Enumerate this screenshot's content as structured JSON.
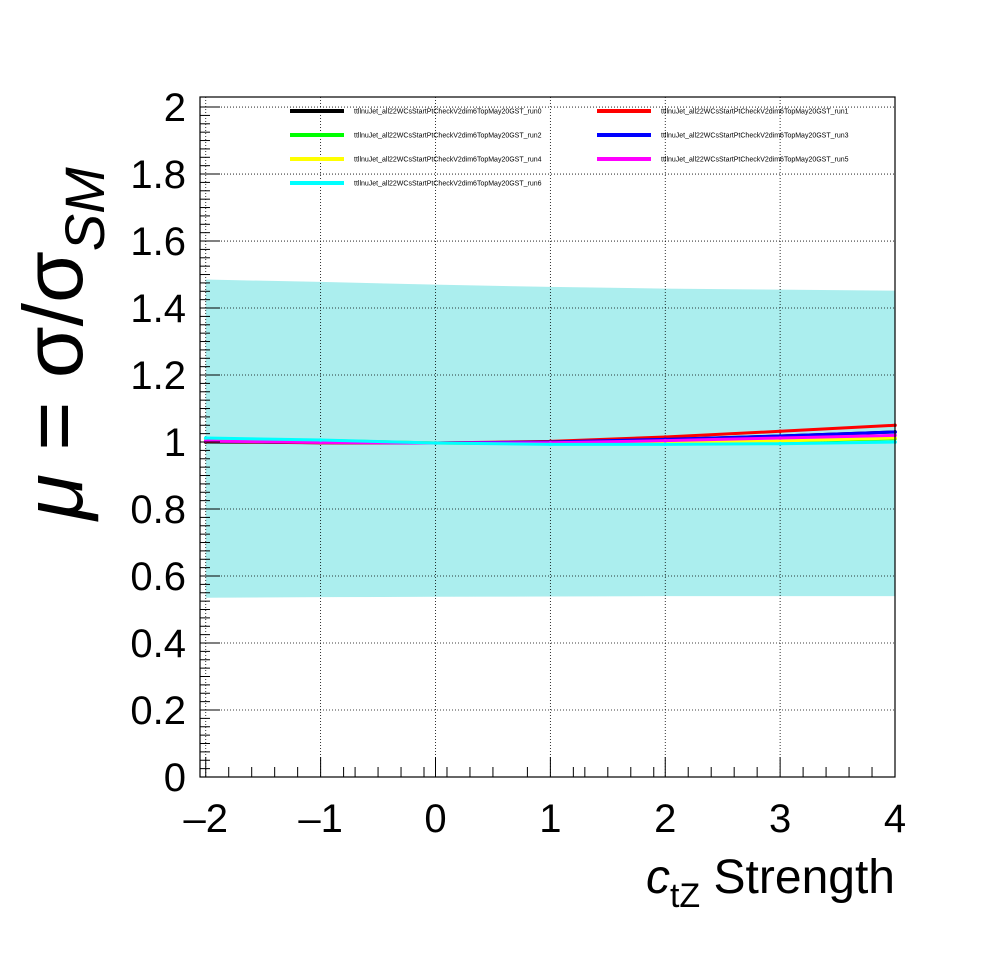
{
  "chart_data": {
    "type": "line",
    "title": "",
    "xlabel": {
      "main": "c",
      "sub": "tZ",
      "suffix": " Strength"
    },
    "ylabel": {
      "mu": "μ",
      "eq": " = σ/σ",
      "sub": "SM"
    },
    "xlim": [
      -2.05,
      4
    ],
    "ylim": [
      0,
      2.03
    ],
    "grid": true,
    "legend_position": "top",
    "x_ticks": [
      -2,
      -1,
      0,
      1,
      2,
      3,
      4
    ],
    "x_tick_labels": [
      "–2",
      "–1",
      "0",
      "1",
      "2",
      "3",
      "4"
    ],
    "y_ticks": [
      0,
      0.2,
      0.4,
      0.6,
      0.8,
      1,
      1.2,
      1.4,
      1.6,
      1.8,
      2
    ],
    "y_tick_labels": [
      "0",
      "0.2",
      "0.4",
      "0.6",
      "0.8",
      "1",
      "1.2",
      "1.4",
      "1.6",
      "1.8",
      "2"
    ],
    "uncertainty_band": {
      "color": "#00cccc",
      "x": [
        -2,
        -1,
        0,
        1,
        2,
        3,
        4
      ],
      "upper": [
        1.485,
        1.478,
        1.47,
        1.463,
        1.458,
        1.455,
        1.452
      ],
      "lower": [
        0.535,
        0.537,
        0.538,
        0.539,
        0.54,
        0.54,
        0.54
      ]
    },
    "series": [
      {
        "name": "ttllnuJet_all22WCsStartPtCheckV2dim6TopMay20GST_run0",
        "color": "#000000",
        "x": [
          -2,
          -1,
          0,
          1,
          2,
          3,
          4
        ],
        "values": [
          1.0,
          0.998,
          0.997,
          1.0,
          1.007,
          1.018,
          1.03
        ]
      },
      {
        "name": "ttllnuJet_all22WCsStartPtCheckV2dim6TopMay20GST_run1",
        "color": "#ff0000",
        "x": [
          -2,
          -1,
          0,
          1,
          2,
          3,
          4
        ],
        "values": [
          1.002,
          0.998,
          0.997,
          1.002,
          1.015,
          1.032,
          1.05
        ]
      },
      {
        "name": "ttllnuJet_all22WCsStartPtCheckV2dim6TopMay20GST_run2",
        "color": "#00ff00",
        "x": [
          -2,
          -1,
          0,
          1,
          2,
          3,
          4
        ],
        "values": [
          1.01,
          1.005,
          0.997,
          0.995,
          0.997,
          1.002,
          1.01
        ]
      },
      {
        "name": "ttllnuJet_all22WCsStartPtCheckV2dim6TopMay20GST_run3",
        "color": "#0000ff",
        "x": [
          -2,
          -1,
          0,
          1,
          2,
          3,
          4
        ],
        "values": [
          1.003,
          1.0,
          0.997,
          1.0,
          1.008,
          1.018,
          1.03
        ]
      },
      {
        "name": "ttllnuJet_all22WCsStartPtCheckV2dim6TopMay20GST_run4",
        "color": "#ffff00",
        "x": [
          -2,
          -1,
          0,
          1,
          2,
          3,
          4
        ],
        "values": [
          1.008,
          1.004,
          0.997,
          0.996,
          0.998,
          1.003,
          1.012
        ]
      },
      {
        "name": "ttllnuJet_all22WCsStartPtCheckV2dim6TopMay20GST_run5",
        "color": "#ff00ff",
        "x": [
          -2,
          -1,
          0,
          1,
          2,
          3,
          4
        ],
        "values": [
          1.003,
          0.999,
          0.997,
          0.998,
          1.004,
          1.012,
          1.02
        ]
      },
      {
        "name": "ttllnuJet_all22WCsStartPtCheckV2dim6TopMay20GST_run6",
        "color": "#00ffff",
        "x": [
          -2,
          -1,
          0,
          1,
          2,
          3,
          4
        ],
        "values": [
          1.012,
          1.006,
          0.997,
          0.993,
          0.993,
          0.995,
          1.0
        ]
      }
    ]
  }
}
